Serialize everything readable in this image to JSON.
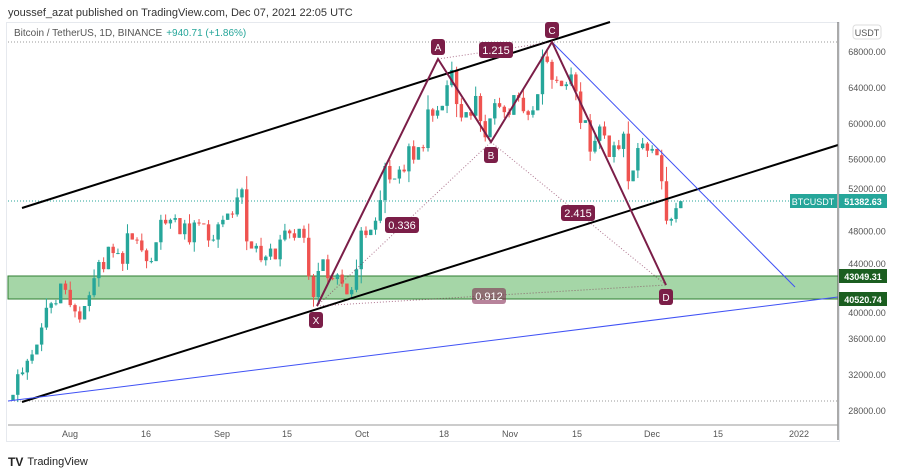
{
  "header": {
    "publisher": "youssef_azat published on TradingView.com, Dec 07, 2021 22:05 UTC"
  },
  "symbol": {
    "title": "Bitcoin / TetherUS, 1D, BINANCE",
    "change": "+940.71 (+1.86%)"
  },
  "currency": "USDT",
  "price_axis": [
    "68000.00",
    "64000.00",
    "60000.00",
    "56000.00",
    "52000.00",
    "48000.00",
    "44000.00",
    "40000.00",
    "36000.00",
    "32000.00",
    "28000.00"
  ],
  "time_axis": [
    "Aug",
    "16",
    "Sep",
    "15",
    "Oct",
    "18",
    "Nov",
    "15",
    "Dec",
    "15",
    "2022"
  ],
  "last_price": {
    "symbol": "BTCUSDT",
    "value": "51382.63"
  },
  "zone": {
    "upper": "43049.31",
    "lower": "40520.74",
    "color": "#a5d6a7"
  },
  "pattern": {
    "points": [
      "X",
      "A",
      "B",
      "C",
      "D"
    ],
    "ratios": [
      "0.336",
      "1.215",
      "2.415",
      "0.912"
    ],
    "color": "#7b1e48"
  },
  "colors": {
    "up": "#26a69a",
    "down": "#ef5350",
    "channel": "#000000",
    "trend": "#3f51f5"
  },
  "chart_data": {
    "type": "candlestick",
    "first_candle": "2021-07-20",
    "ylim": [
      27000,
      69500
    ],
    "closes": [
      29800,
      32100,
      32300,
      33600,
      34300,
      35400,
      37300,
      39500,
      40000,
      40000,
      42200,
      41500,
      39800,
      39100,
      38200,
      39700,
      40900,
      42800,
      44600,
      43800,
      46300,
      45600,
      45600,
      44400,
      47800,
      47100,
      47000,
      45900,
      44700,
      44700,
      46800,
      49300,
      48900,
      49300,
      49500,
      47700,
      48900,
      46800,
      49000,
      48900,
      48800,
      47000,
      47100,
      48800,
      49300,
      50000,
      49900,
      51800,
      52700,
      46900,
      46100,
      46400,
      44800,
      45200,
      46100,
      44900,
      47100,
      48100,
      47800,
      47300,
      48300,
      47300,
      43000,
      40700,
      43600,
      44900,
      42800,
      42700,
      43200,
      42200,
      41000,
      41500,
      43800,
      48100,
      47600,
      48200,
      49200,
      51500,
      55300,
      53800,
      53900,
      54900,
      54700,
      57500,
      56000,
      57400,
      57300,
      61600,
      60900,
      61500,
      62000,
      64300,
      66000,
      62200,
      60700,
      61300,
      60900,
      63100,
      60300,
      58500,
      60600,
      62300,
      61900,
      61300,
      61000,
      63200,
      62900,
      61400,
      61000,
      61500,
      63300,
      67500,
      66900,
      64900,
      64800,
      64200,
      64400,
      65500,
      63600,
      60100,
      60400,
      56900,
      58100,
      59700,
      58700,
      56300,
      57600,
      57200,
      58900,
      53600,
      54800,
      57300,
      57800,
      57000,
      57200,
      56500,
      53600,
      49200,
      49400,
      50600,
      51382.63
    ]
  },
  "footer": {
    "brand": "TradingView"
  }
}
